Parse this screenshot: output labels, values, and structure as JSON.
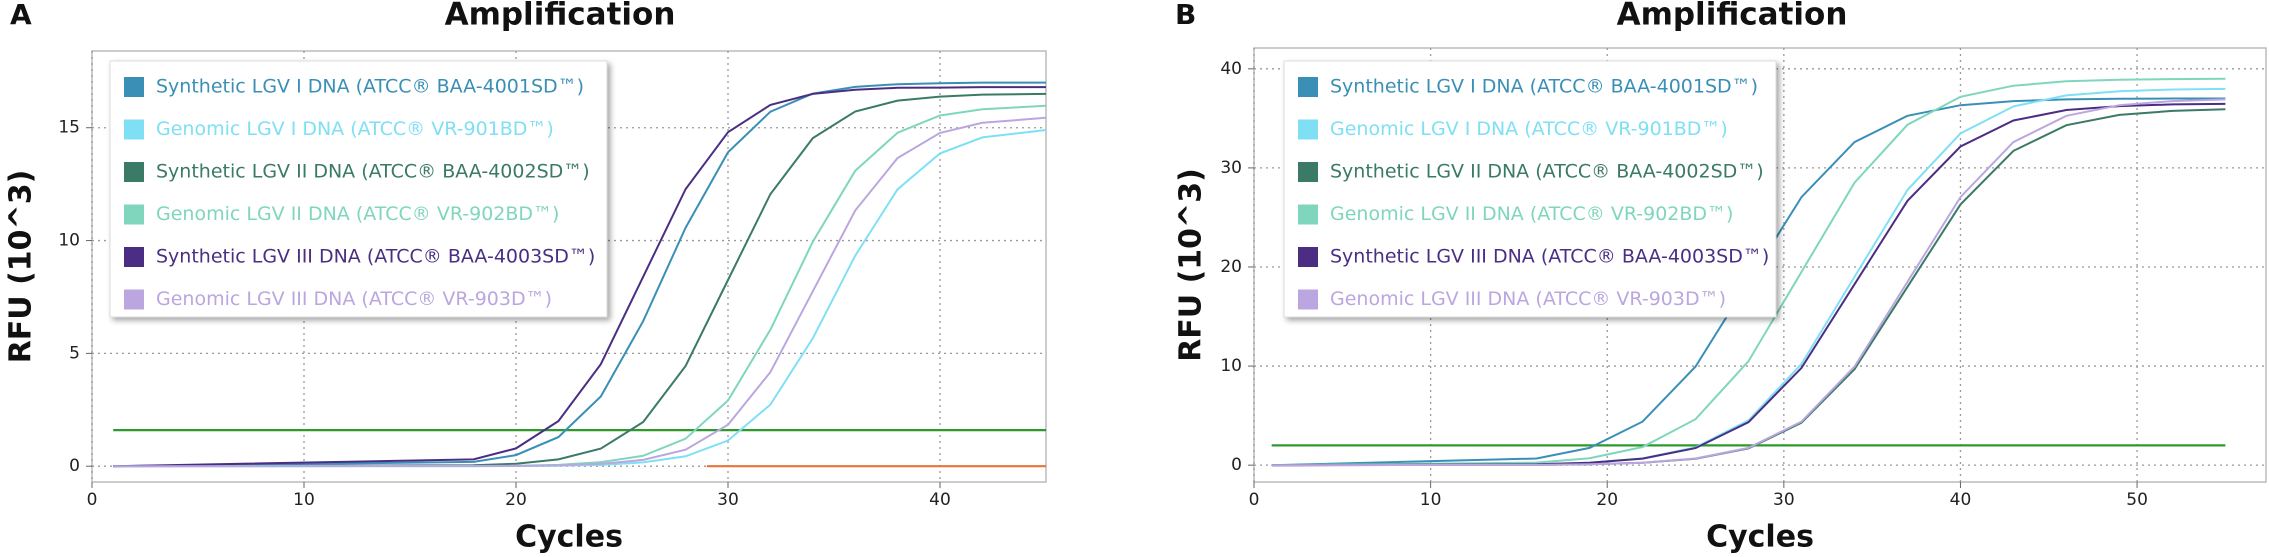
{
  "chart_data": [
    {
      "type": "line",
      "panel": "A",
      "title": "Amplification",
      "x_label": "Cycles",
      "y_label": "RFU (10^3)",
      "xlim": [
        0,
        45
      ],
      "ylim": [
        -0.7,
        18.4
      ],
      "xticks": [
        0,
        10,
        20,
        30,
        40
      ],
      "yticks": [
        0,
        5,
        10,
        15
      ],
      "grid": true,
      "legend": "upper left",
      "x": [
        1,
        18,
        20,
        22,
        24,
        26,
        28,
        30,
        32,
        34,
        36,
        38,
        40,
        42,
        45
      ],
      "series": [
        {
          "name": "Synthetic LGV I DNA (ATCC® BAA-4001SD™)",
          "color": "#3a8fb7",
          "values": [
            0,
            0.19,
            0.49,
            1.29,
            3.09,
            6.43,
            10.57,
            13.91,
            15.71,
            16.51,
            16.81,
            16.93,
            16.97,
            17.0,
            17.0
          ]
        },
        {
          "name": "Genomic LGV I DNA (ATCC® VR-901BD™)",
          "color": "#7fe0f5",
          "values": [
            0,
            0,
            0.01,
            0.02,
            0.06,
            0.17,
            0.44,
            1.14,
            2.73,
            5.67,
            9.33,
            12.27,
            13.86,
            14.57,
            14.9
          ]
        },
        {
          "name": "Synthetic LGV II DNA (ATCC® BAA-4002SD™)",
          "color": "#3a7a66",
          "values": [
            0,
            0.04,
            0.11,
            0.3,
            0.78,
            1.96,
            4.44,
            8.25,
            12.06,
            14.54,
            15.72,
            16.2,
            16.38,
            16.47,
            16.5
          ]
        },
        {
          "name": "Genomic LGV II DNA (ATCC® VR-902BD™)",
          "color": "#7fd6bd",
          "values": [
            0,
            0.01,
            0.02,
            0.06,
            0.18,
            0.46,
            1.22,
            2.91,
            6.05,
            9.95,
            13.09,
            14.78,
            15.54,
            15.82,
            15.97
          ]
        },
        {
          "name": "Synthetic LGV III DNA (ATCC® BAA-4003SD™)",
          "color": "#4b2e83",
          "values": [
            0,
            0.3,
            0.79,
            2.0,
            4.52,
            8.4,
            12.28,
            14.8,
            16.01,
            16.5,
            16.68,
            16.77,
            16.78,
            16.8,
            16.8
          ]
        },
        {
          "name": "Genomic LGV III DNA (ATCC® VR-903D™)",
          "color": "#bba6e0",
          "values": [
            0,
            0.01,
            0.01,
            0.04,
            0.1,
            0.28,
            0.73,
            1.84,
            4.17,
            7.75,
            11.33,
            13.66,
            14.77,
            15.22,
            15.44
          ]
        }
      ],
      "reference_lines": [
        {
          "color": "#2e9a2e",
          "x": [
            1,
            45
          ],
          "values": [
            1.6,
            1.6
          ]
        },
        {
          "color": "#e8743b",
          "x": [
            29,
            45
          ],
          "values": [
            0,
            0
          ]
        }
      ]
    },
    {
      "type": "line",
      "panel": "B",
      "title": "Amplification",
      "x_label": "Cycles",
      "y_label": "RFU (10^3)",
      "xlim": [
        0,
        57.3
      ],
      "ylim": [
        -1.7,
        42.1
      ],
      "xticks": [
        0,
        10,
        20,
        30,
        40,
        50
      ],
      "yticks": [
        0,
        10,
        20,
        30,
        40
      ],
      "grid": true,
      "legend": "upper left",
      "x": [
        1,
        16,
        19,
        22,
        25,
        28,
        31,
        34,
        37,
        40,
        43,
        46,
        49,
        52,
        55
      ],
      "series": [
        {
          "name": "Synthetic LGV I DNA (ATCC® BAA-4001SD™)",
          "color": "#3a8fb7",
          "values": [
            0,
            0.67,
            1.74,
            4.4,
            9.95,
            18.5,
            27.05,
            32.6,
            35.26,
            36.33,
            36.74,
            36.91,
            36.97,
            37.0,
            37.0
          ]
        },
        {
          "name": "Genomic LGV I DNA (ATCC® VR-901BD™)",
          "color": "#7fe0f5",
          "values": [
            0,
            0.1,
            0.25,
            0.68,
            1.79,
            4.52,
            10.22,
            19.0,
            27.78,
            33.48,
            36.21,
            37.32,
            37.73,
            37.91,
            37.97
          ]
        },
        {
          "name": "Synthetic LGV II DNA (ATCC® BAA-4002SD™)",
          "color": "#3a7a66",
          "values": [
            0,
            0.03,
            0.09,
            0.24,
            0.65,
            1.69,
            4.28,
            9.68,
            18.0,
            26.32,
            31.72,
            34.31,
            35.35,
            35.75,
            35.91
          ]
        },
        {
          "name": "Genomic LGV II DNA (ATCC® VR-902BD™)",
          "color": "#7fd6bd",
          "values": [
            0,
            0.26,
            0.7,
            1.83,
            4.64,
            10.49,
            19.5,
            28.51,
            34.36,
            37.17,
            38.3,
            38.74,
            38.9,
            38.96,
            39.0
          ]
        },
        {
          "name": "Synthetic LGV III DNA (ATCC® BAA-4003SD™)",
          "color": "#4b2e83",
          "values": [
            0,
            0.09,
            0.24,
            0.66,
            1.72,
            4.34,
            9.82,
            18.25,
            26.68,
            32.16,
            34.78,
            35.84,
            36.24,
            36.41,
            36.46
          ]
        },
        {
          "name": "Genomic LGV III DNA (ATCC® VR-903D™)",
          "color": "#bba6e0",
          "values": [
            0,
            0.03,
            0.09,
            0.25,
            0.67,
            1.74,
            4.4,
            9.95,
            18.5,
            27.05,
            32.6,
            35.26,
            36.33,
            36.74,
            36.91
          ]
        }
      ],
      "reference_lines": [
        {
          "color": "#2e9a2e",
          "x": [
            1,
            55
          ],
          "values": [
            2.0,
            2.0
          ]
        }
      ]
    }
  ]
}
